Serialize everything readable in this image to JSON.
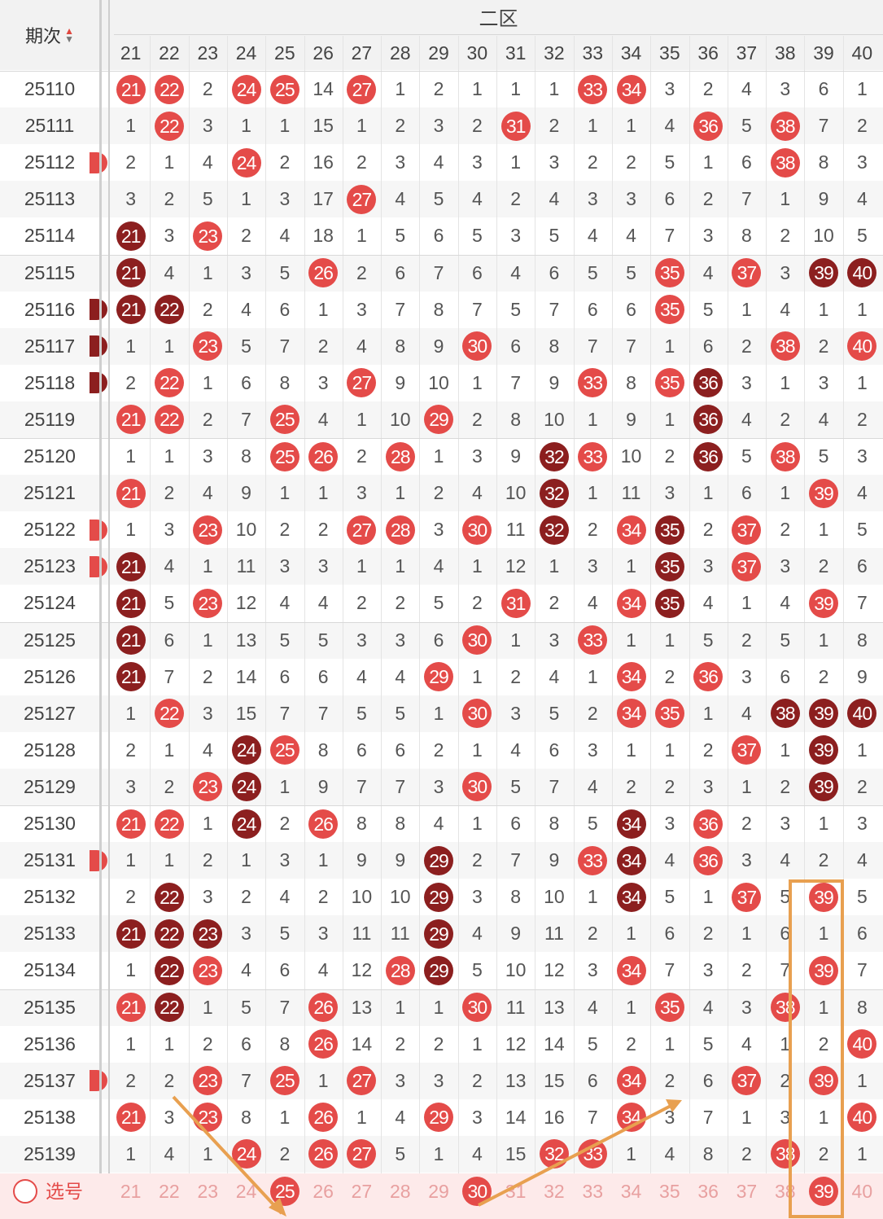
{
  "header": {
    "zone_label": "二区",
    "period_label": "期次"
  },
  "columns": [
    "21",
    "22",
    "23",
    "24",
    "25",
    "26",
    "27",
    "28",
    "29",
    "30",
    "31",
    "32",
    "33",
    "34",
    "35",
    "36",
    "37",
    "38",
    "39",
    "40"
  ],
  "rows": [
    {
      "p": "25110",
      "c": [
        [
          "21",
          "r"
        ],
        [
          "22",
          "r"
        ],
        "2",
        [
          "24",
          "r"
        ],
        [
          "25",
          "r"
        ],
        "14",
        [
          "27",
          "r"
        ],
        "1",
        "2",
        "1",
        "1",
        "1",
        [
          "33",
          "r"
        ],
        [
          "34",
          "r"
        ],
        "3",
        "2",
        "4",
        "3",
        "6",
        "1"
      ]
    },
    {
      "p": "25111",
      "c": [
        "1",
        [
          "22",
          "r"
        ],
        "3",
        "1",
        "1",
        "15",
        "1",
        "2",
        "3",
        "2",
        [
          "31",
          "r"
        ],
        "2",
        "1",
        "1",
        "4",
        [
          "36",
          "r"
        ],
        "5",
        [
          "38",
          "r"
        ],
        "7",
        "2"
      ]
    },
    {
      "p": "25112",
      "edge": "r",
      "c": [
        "2",
        "1",
        "4",
        [
          "24",
          "r"
        ],
        "2",
        "16",
        "2",
        "3",
        "4",
        "3",
        "1",
        "3",
        "2",
        "2",
        "5",
        "1",
        "6",
        [
          "38",
          "r"
        ],
        "8",
        "3"
      ]
    },
    {
      "p": "25113",
      "c": [
        "3",
        "2",
        "5",
        "1",
        "3",
        "17",
        [
          "27",
          "r"
        ],
        "4",
        "5",
        "4",
        "2",
        "4",
        "3",
        "3",
        "6",
        "2",
        "7",
        "1",
        "9",
        "4"
      ]
    },
    {
      "p": "25114",
      "c": [
        [
          "21",
          "d"
        ],
        "3",
        [
          "23",
          "r"
        ],
        "2",
        "4",
        "18",
        "1",
        "5",
        "6",
        "5",
        "3",
        "5",
        "4",
        "4",
        "7",
        "3",
        "8",
        "2",
        "10",
        "5"
      ]
    },
    {
      "p": "25115",
      "c": [
        [
          "21",
          "d"
        ],
        "4",
        "1",
        "3",
        "5",
        [
          "26",
          "r"
        ],
        "2",
        "6",
        "7",
        "6",
        "4",
        "6",
        "5",
        "5",
        [
          "35",
          "r"
        ],
        "4",
        [
          "37",
          "r"
        ],
        "3",
        [
          "39",
          "d"
        ],
        [
          "40",
          "d"
        ]
      ]
    },
    {
      "p": "25116",
      "edge": "d",
      "c": [
        [
          "21",
          "d"
        ],
        [
          "22",
          "d"
        ],
        "2",
        "4",
        "6",
        "1",
        "3",
        "7",
        "8",
        "7",
        "5",
        "7",
        "6",
        "6",
        [
          "35",
          "r"
        ],
        "5",
        "1",
        "4",
        "1",
        "1"
      ]
    },
    {
      "p": "25117",
      "edge": "d",
      "c": [
        "1",
        "1",
        [
          "23",
          "r"
        ],
        "5",
        "7",
        "2",
        "4",
        "8",
        "9",
        [
          "30",
          "r"
        ],
        "6",
        "8",
        "7",
        "7",
        "1",
        "6",
        "2",
        [
          "38",
          "r"
        ],
        "2",
        [
          "40",
          "r"
        ]
      ]
    },
    {
      "p": "25118",
      "edge": "d",
      "c": [
        "2",
        [
          "22",
          "r"
        ],
        "1",
        "6",
        "8",
        "3",
        [
          "27",
          "r"
        ],
        "9",
        "10",
        "1",
        "7",
        "9",
        [
          "33",
          "r"
        ],
        "8",
        [
          "35",
          "r"
        ],
        [
          "36",
          "d"
        ],
        "3",
        "1",
        "3",
        "1"
      ]
    },
    {
      "p": "25119",
      "c": [
        [
          "21",
          "r"
        ],
        [
          "22",
          "r"
        ],
        "2",
        "7",
        [
          "25",
          "r"
        ],
        "4",
        "1",
        "10",
        [
          "29",
          "r"
        ],
        "2",
        "8",
        "10",
        "1",
        "9",
        "1",
        [
          "36",
          "d"
        ],
        "4",
        "2",
        "4",
        "2"
      ]
    },
    {
      "p": "25120",
      "c": [
        "1",
        "1",
        "3",
        "8",
        [
          "25",
          "r"
        ],
        [
          "26",
          "r"
        ],
        "2",
        [
          "28",
          "r"
        ],
        "1",
        "3",
        "9",
        [
          "32",
          "d"
        ],
        [
          "33",
          "r"
        ],
        "10",
        "2",
        [
          "36",
          "d"
        ],
        "5",
        [
          "38",
          "r"
        ],
        "5",
        "3"
      ]
    },
    {
      "p": "25121",
      "c": [
        [
          "21",
          "r"
        ],
        "2",
        "4",
        "9",
        "1",
        "1",
        "3",
        "1",
        "2",
        "4",
        "10",
        [
          "32",
          "d"
        ],
        "1",
        "11",
        "3",
        "1",
        "6",
        "1",
        [
          "39",
          "r"
        ],
        "4"
      ]
    },
    {
      "p": "25122",
      "edge": "r",
      "c": [
        "1",
        "3",
        [
          "23",
          "r"
        ],
        "10",
        "2",
        "2",
        [
          "27",
          "r"
        ],
        [
          "28",
          "r"
        ],
        "3",
        [
          "30",
          "r"
        ],
        "11",
        [
          "32",
          "d"
        ],
        "2",
        [
          "34",
          "r"
        ],
        [
          "35",
          "d"
        ],
        "2",
        [
          "37",
          "r"
        ],
        "2",
        "1",
        "5"
      ]
    },
    {
      "p": "25123",
      "edge": "r",
      "c": [
        [
          "21",
          "d"
        ],
        "4",
        "1",
        "11",
        "3",
        "3",
        "1",
        "1",
        "4",
        "1",
        "12",
        "1",
        "3",
        "1",
        [
          "35",
          "d"
        ],
        "3",
        [
          "37",
          "r"
        ],
        "3",
        "2",
        "6"
      ]
    },
    {
      "p": "25124",
      "c": [
        [
          "21",
          "d"
        ],
        "5",
        [
          "23",
          "r"
        ],
        "12",
        "4",
        "4",
        "2",
        "2",
        "5",
        "2",
        [
          "31",
          "r"
        ],
        "2",
        "4",
        [
          "34",
          "r"
        ],
        [
          "35",
          "d"
        ],
        "4",
        "1",
        "4",
        [
          "39",
          "r"
        ],
        "7"
      ]
    },
    {
      "p": "25125",
      "c": [
        [
          "21",
          "d"
        ],
        "6",
        "1",
        "13",
        "5",
        "5",
        "3",
        "3",
        "6",
        [
          "30",
          "r"
        ],
        "1",
        "3",
        [
          "33",
          "r"
        ],
        "1",
        "1",
        "5",
        "2",
        "5",
        "1",
        "8"
      ]
    },
    {
      "p": "25126",
      "c": [
        [
          "21",
          "d"
        ],
        "7",
        "2",
        "14",
        "6",
        "6",
        "4",
        "4",
        [
          "29",
          "r"
        ],
        "1",
        "2",
        "4",
        "1",
        [
          "34",
          "r"
        ],
        "2",
        [
          "36",
          "r"
        ],
        "3",
        "6",
        "2",
        "9"
      ]
    },
    {
      "p": "25127",
      "c": [
        "1",
        [
          "22",
          "r"
        ],
        "3",
        "15",
        "7",
        "7",
        "5",
        "5",
        "1",
        [
          "30",
          "r"
        ],
        "3",
        "5",
        "2",
        [
          "34",
          "r"
        ],
        [
          "35",
          "r"
        ],
        "1",
        "4",
        [
          "38",
          "d"
        ],
        [
          "39",
          "d"
        ],
        [
          "40",
          "d"
        ]
      ]
    },
    {
      "p": "25128",
      "c": [
        "2",
        "1",
        "4",
        [
          "24",
          "d"
        ],
        [
          "25",
          "r"
        ],
        "8",
        "6",
        "6",
        "2",
        "1",
        "4",
        "6",
        "3",
        "1",
        "1",
        "2",
        [
          "37",
          "r"
        ],
        "1",
        [
          "39",
          "d"
        ],
        "1"
      ]
    },
    {
      "p": "25129",
      "c": [
        "3",
        "2",
        [
          "23",
          "r"
        ],
        [
          "24",
          "d"
        ],
        "1",
        "9",
        "7",
        "7",
        "3",
        [
          "30",
          "r"
        ],
        "5",
        "7",
        "4",
        "2",
        "2",
        "3",
        "1",
        "2",
        [
          "39",
          "d"
        ],
        "2"
      ]
    },
    {
      "p": "25130",
      "c": [
        [
          "21",
          "r"
        ],
        [
          "22",
          "r"
        ],
        "1",
        [
          "24",
          "d"
        ],
        "2",
        [
          "26",
          "r"
        ],
        "8",
        "8",
        "4",
        "1",
        "6",
        "8",
        "5",
        [
          "34",
          "d"
        ],
        "3",
        [
          "36",
          "r"
        ],
        "2",
        "3",
        "1",
        "3"
      ]
    },
    {
      "p": "25131",
      "edge": "r",
      "c": [
        "1",
        "1",
        "2",
        "1",
        "3",
        "1",
        "9",
        "9",
        [
          "29",
          "d"
        ],
        "2",
        "7",
        "9",
        [
          "33",
          "r"
        ],
        [
          "34",
          "d"
        ],
        "4",
        [
          "36",
          "r"
        ],
        "3",
        "4",
        "2",
        "4"
      ]
    },
    {
      "p": "25132",
      "c": [
        "2",
        [
          "22",
          "d"
        ],
        "3",
        "2",
        "4",
        "2",
        "10",
        "10",
        [
          "29",
          "d"
        ],
        "3",
        "8",
        "10",
        "1",
        [
          "34",
          "d"
        ],
        "5",
        "1",
        [
          "37",
          "r"
        ],
        "5",
        [
          "39",
          "r"
        ],
        "5"
      ]
    },
    {
      "p": "25133",
      "c": [
        [
          "21",
          "d"
        ],
        [
          "22",
          "d"
        ],
        [
          "23",
          "d"
        ],
        "3",
        "5",
        "3",
        "11",
        "11",
        [
          "29",
          "d"
        ],
        "4",
        "9",
        "11",
        "2",
        "1",
        "6",
        "2",
        "1",
        "6",
        "1",
        "6"
      ]
    },
    {
      "p": "25134",
      "c": [
        "1",
        [
          "22",
          "d"
        ],
        [
          "23",
          "r"
        ],
        "4",
        "6",
        "4",
        "12",
        [
          "28",
          "r"
        ],
        [
          "29",
          "d"
        ],
        "5",
        "10",
        "12",
        "3",
        [
          "34",
          "r"
        ],
        "7",
        "3",
        "2",
        "7",
        [
          "39",
          "r"
        ],
        "7"
      ]
    },
    {
      "p": "25135",
      "c": [
        [
          "21",
          "r"
        ],
        [
          "22",
          "d"
        ],
        "1",
        "5",
        "7",
        [
          "26",
          "r"
        ],
        "13",
        "1",
        "1",
        [
          "30",
          "r"
        ],
        "11",
        "13",
        "4",
        "1",
        [
          "35",
          "r"
        ],
        "4",
        "3",
        [
          "38",
          "r"
        ],
        "1",
        "8"
      ]
    },
    {
      "p": "25136",
      "c": [
        "1",
        "1",
        "2",
        "6",
        "8",
        [
          "26",
          "r"
        ],
        "14",
        "2",
        "2",
        "1",
        "12",
        "14",
        "5",
        "2",
        "1",
        "5",
        "4",
        "1",
        "2",
        [
          "40",
          "r"
        ]
      ]
    },
    {
      "p": "25137",
      "edge": "r",
      "c": [
        "2",
        "2",
        [
          "23",
          "r"
        ],
        "7",
        [
          "25",
          "r"
        ],
        "1",
        [
          "27",
          "r"
        ],
        "3",
        "3",
        "2",
        "13",
        "15",
        "6",
        [
          "34",
          "r"
        ],
        "2",
        "6",
        [
          "37",
          "r"
        ],
        "2",
        [
          "39",
          "r"
        ],
        "1"
      ]
    },
    {
      "p": "25138",
      "c": [
        [
          "21",
          "r"
        ],
        "3",
        [
          "23",
          "r"
        ],
        "8",
        "1",
        [
          "26",
          "r"
        ],
        "1",
        "4",
        [
          "29",
          "r"
        ],
        "3",
        "14",
        "16",
        "7",
        [
          "34",
          "r"
        ],
        "3",
        "7",
        "1",
        "3",
        "1",
        [
          "40",
          "r"
        ]
      ]
    },
    {
      "p": "25139",
      "c": [
        "1",
        "4",
        "1",
        [
          "24",
          "r"
        ],
        "2",
        [
          "26",
          "r"
        ],
        [
          "27",
          "r"
        ],
        "5",
        "1",
        "4",
        "15",
        [
          "32",
          "r"
        ],
        [
          "33",
          "r"
        ],
        "1",
        "4",
        "8",
        "2",
        [
          "38",
          "r"
        ],
        "2",
        "1"
      ]
    }
  ],
  "select_row": {
    "label": "选号",
    "picked": [
      "25",
      "30",
      "39"
    ]
  },
  "colors": {
    "red": "#e44b49",
    "dark": "#8c1f1f",
    "annotation": "#e8a050"
  }
}
